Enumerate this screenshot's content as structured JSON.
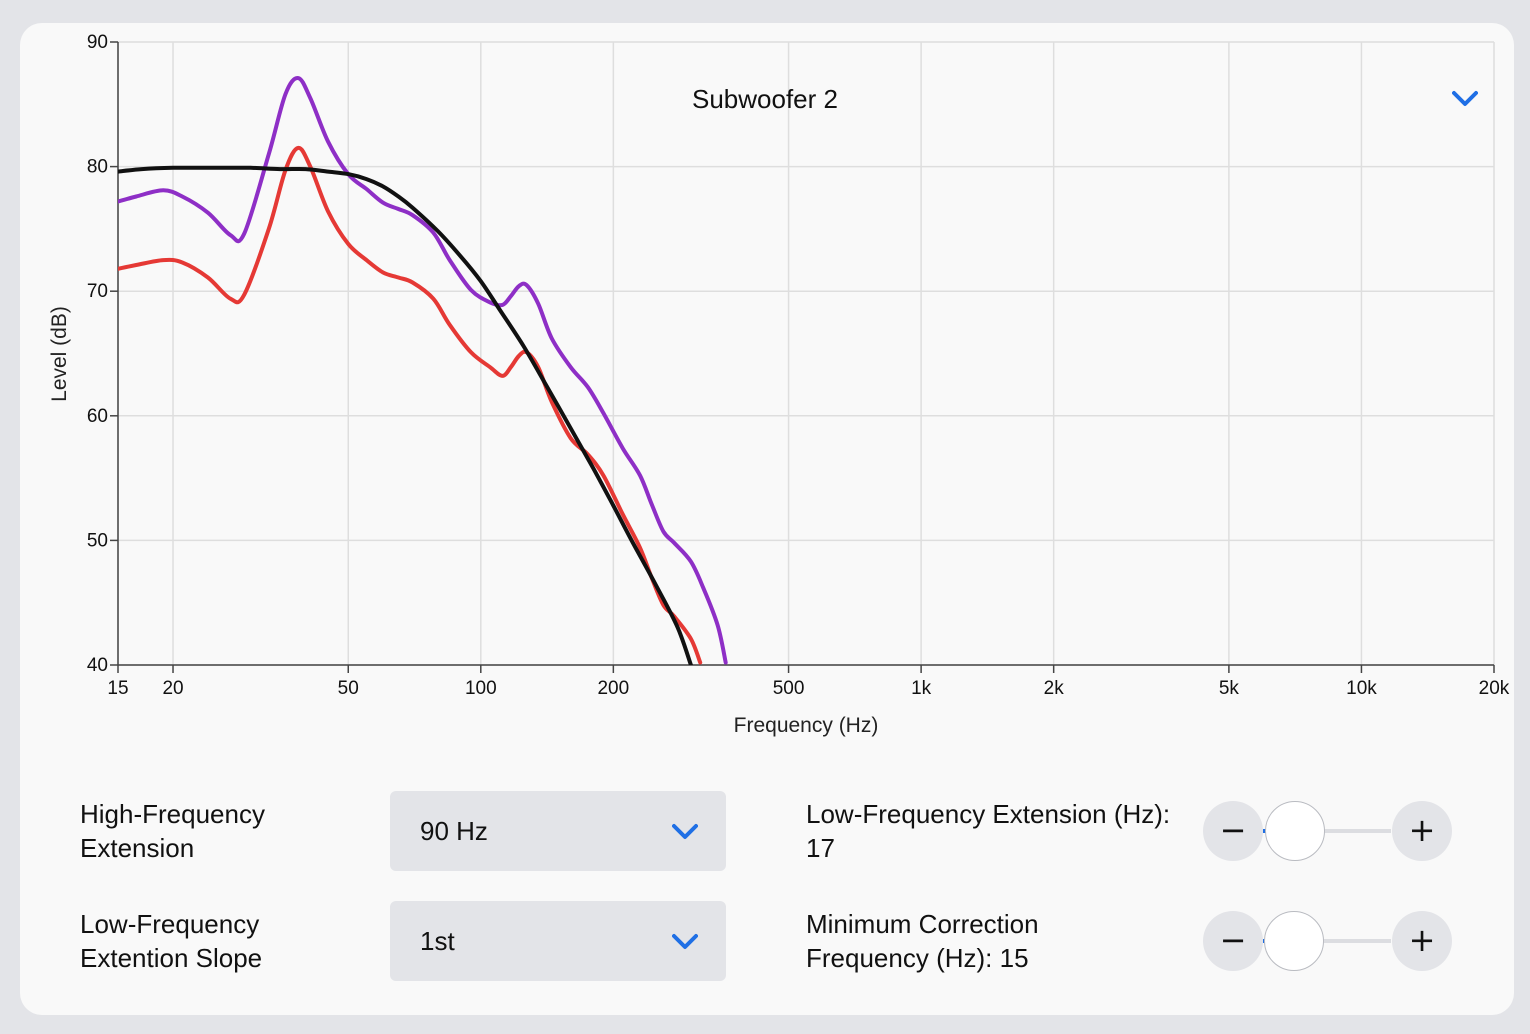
{
  "panel": {
    "title": "Subwoofer 2"
  },
  "colors": {
    "accent": "#1f6fe5",
    "series_purple": "#8e2fc6",
    "series_red": "#e53935",
    "series_black": "#111111"
  },
  "icons": {
    "dropdown": "chevron-down-icon",
    "decrease": "minus-icon",
    "increase": "plus-icon"
  },
  "chart_data": {
    "type": "line",
    "xlabel": "Frequency (Hz)",
    "ylabel": "Level (dB)",
    "x_scale": "log",
    "xlim": [
      15,
      20000
    ],
    "ylim": [
      40,
      90
    ],
    "grid": true,
    "xticks": [
      15,
      20,
      50,
      100,
      200,
      500,
      1000,
      2000,
      5000,
      10000,
      20000
    ],
    "xtick_labels": [
      "15",
      "20",
      "50",
      "100",
      "200",
      "500",
      "1k",
      "2k",
      "5k",
      "10k",
      "20k"
    ],
    "yticks": [
      40,
      50,
      60,
      70,
      80,
      90
    ],
    "ytick_labels": [
      "40",
      "50",
      "60",
      "70",
      "80",
      "90"
    ],
    "series": [
      {
        "color": "#8e2fc6",
        "x": [
          15,
          16.5,
          19,
          21,
          24,
          27,
          29,
          33,
          36,
          38.5,
          41,
          45,
          50,
          55,
          60,
          65,
          70,
          78,
          85,
          95,
          105,
          112,
          117,
          122,
          127,
          135,
          145,
          160,
          175,
          190,
          210,
          230,
          245,
          260,
          275,
          300,
          320,
          345,
          360
        ],
        "y": [
          77.2,
          77.6,
          78.1,
          77.6,
          76.3,
          74.5,
          74.6,
          81,
          85.8,
          87.1,
          85.5,
          82,
          79.4,
          78.2,
          77.1,
          76.6,
          76.1,
          74.7,
          72.5,
          70.1,
          69.1,
          68.9,
          69.6,
          70.4,
          70.5,
          69,
          66.2,
          63.9,
          62.3,
          60.2,
          57.4,
          55.2,
          52.8,
          50.7,
          49.8,
          48.3,
          46.2,
          43.2,
          40.2
        ]
      },
      {
        "color": "#e53935",
        "x": [
          15,
          16.5,
          19,
          21,
          24,
          27,
          29,
          33,
          36,
          38.5,
          41,
          45,
          50,
          55,
          60,
          65,
          70,
          78,
          85,
          95,
          105,
          112,
          117,
          122,
          127,
          135,
          145,
          160,
          175,
          190,
          210,
          230,
          245,
          260,
          275,
          300,
          315
        ],
        "y": [
          71.8,
          72.1,
          72.5,
          72.3,
          71.1,
          69.4,
          69.7,
          75,
          79.7,
          81.5,
          80,
          76.4,
          73.8,
          72.5,
          71.5,
          71.1,
          70.7,
          69.4,
          67.3,
          65.1,
          63.9,
          63.2,
          63.9,
          64.8,
          65.1,
          63.9,
          61.1,
          58.2,
          56.9,
          55.2,
          52.1,
          49.4,
          46.9,
          44.8,
          43.9,
          42.1,
          40.2
        ]
      },
      {
        "color": "#111111",
        "x": [
          15,
          17,
          20,
          25,
          30,
          35,
          40,
          45,
          50,
          55,
          60,
          65,
          70,
          80,
          90,
          100,
          110,
          125,
          140,
          160,
          180,
          200,
          220,
          250,
          280,
          300
        ],
        "y": [
          79.6,
          79.8,
          79.9,
          79.9,
          79.9,
          79.8,
          79.8,
          79.6,
          79.4,
          79,
          78.4,
          77.6,
          76.7,
          74.8,
          72.8,
          70.8,
          68.6,
          65.6,
          62.6,
          59,
          55.8,
          52.8,
          50,
          46.4,
          43,
          40
        ]
      }
    ]
  },
  "controls": {
    "hf_extension": {
      "label_line1": "High-Frequency",
      "label_line2": "Extension",
      "value": "90 Hz"
    },
    "lf_slope": {
      "label_line1": "Low-Frequency",
      "label_line2": "Extention Slope",
      "value": "1st"
    },
    "lf_extension": {
      "label_line1": "Low-Frequency Extension (Hz):",
      "label_line2": "17",
      "value": 17,
      "min": 15,
      "max": 150,
      "minus": "−",
      "plus": "+"
    },
    "min_correction": {
      "label_line1": "Minimum Correction",
      "label_line2": "Frequency (Hz): 15",
      "value": 15,
      "min": 15,
      "max": 150,
      "minus": "−",
      "plus": "+"
    }
  }
}
